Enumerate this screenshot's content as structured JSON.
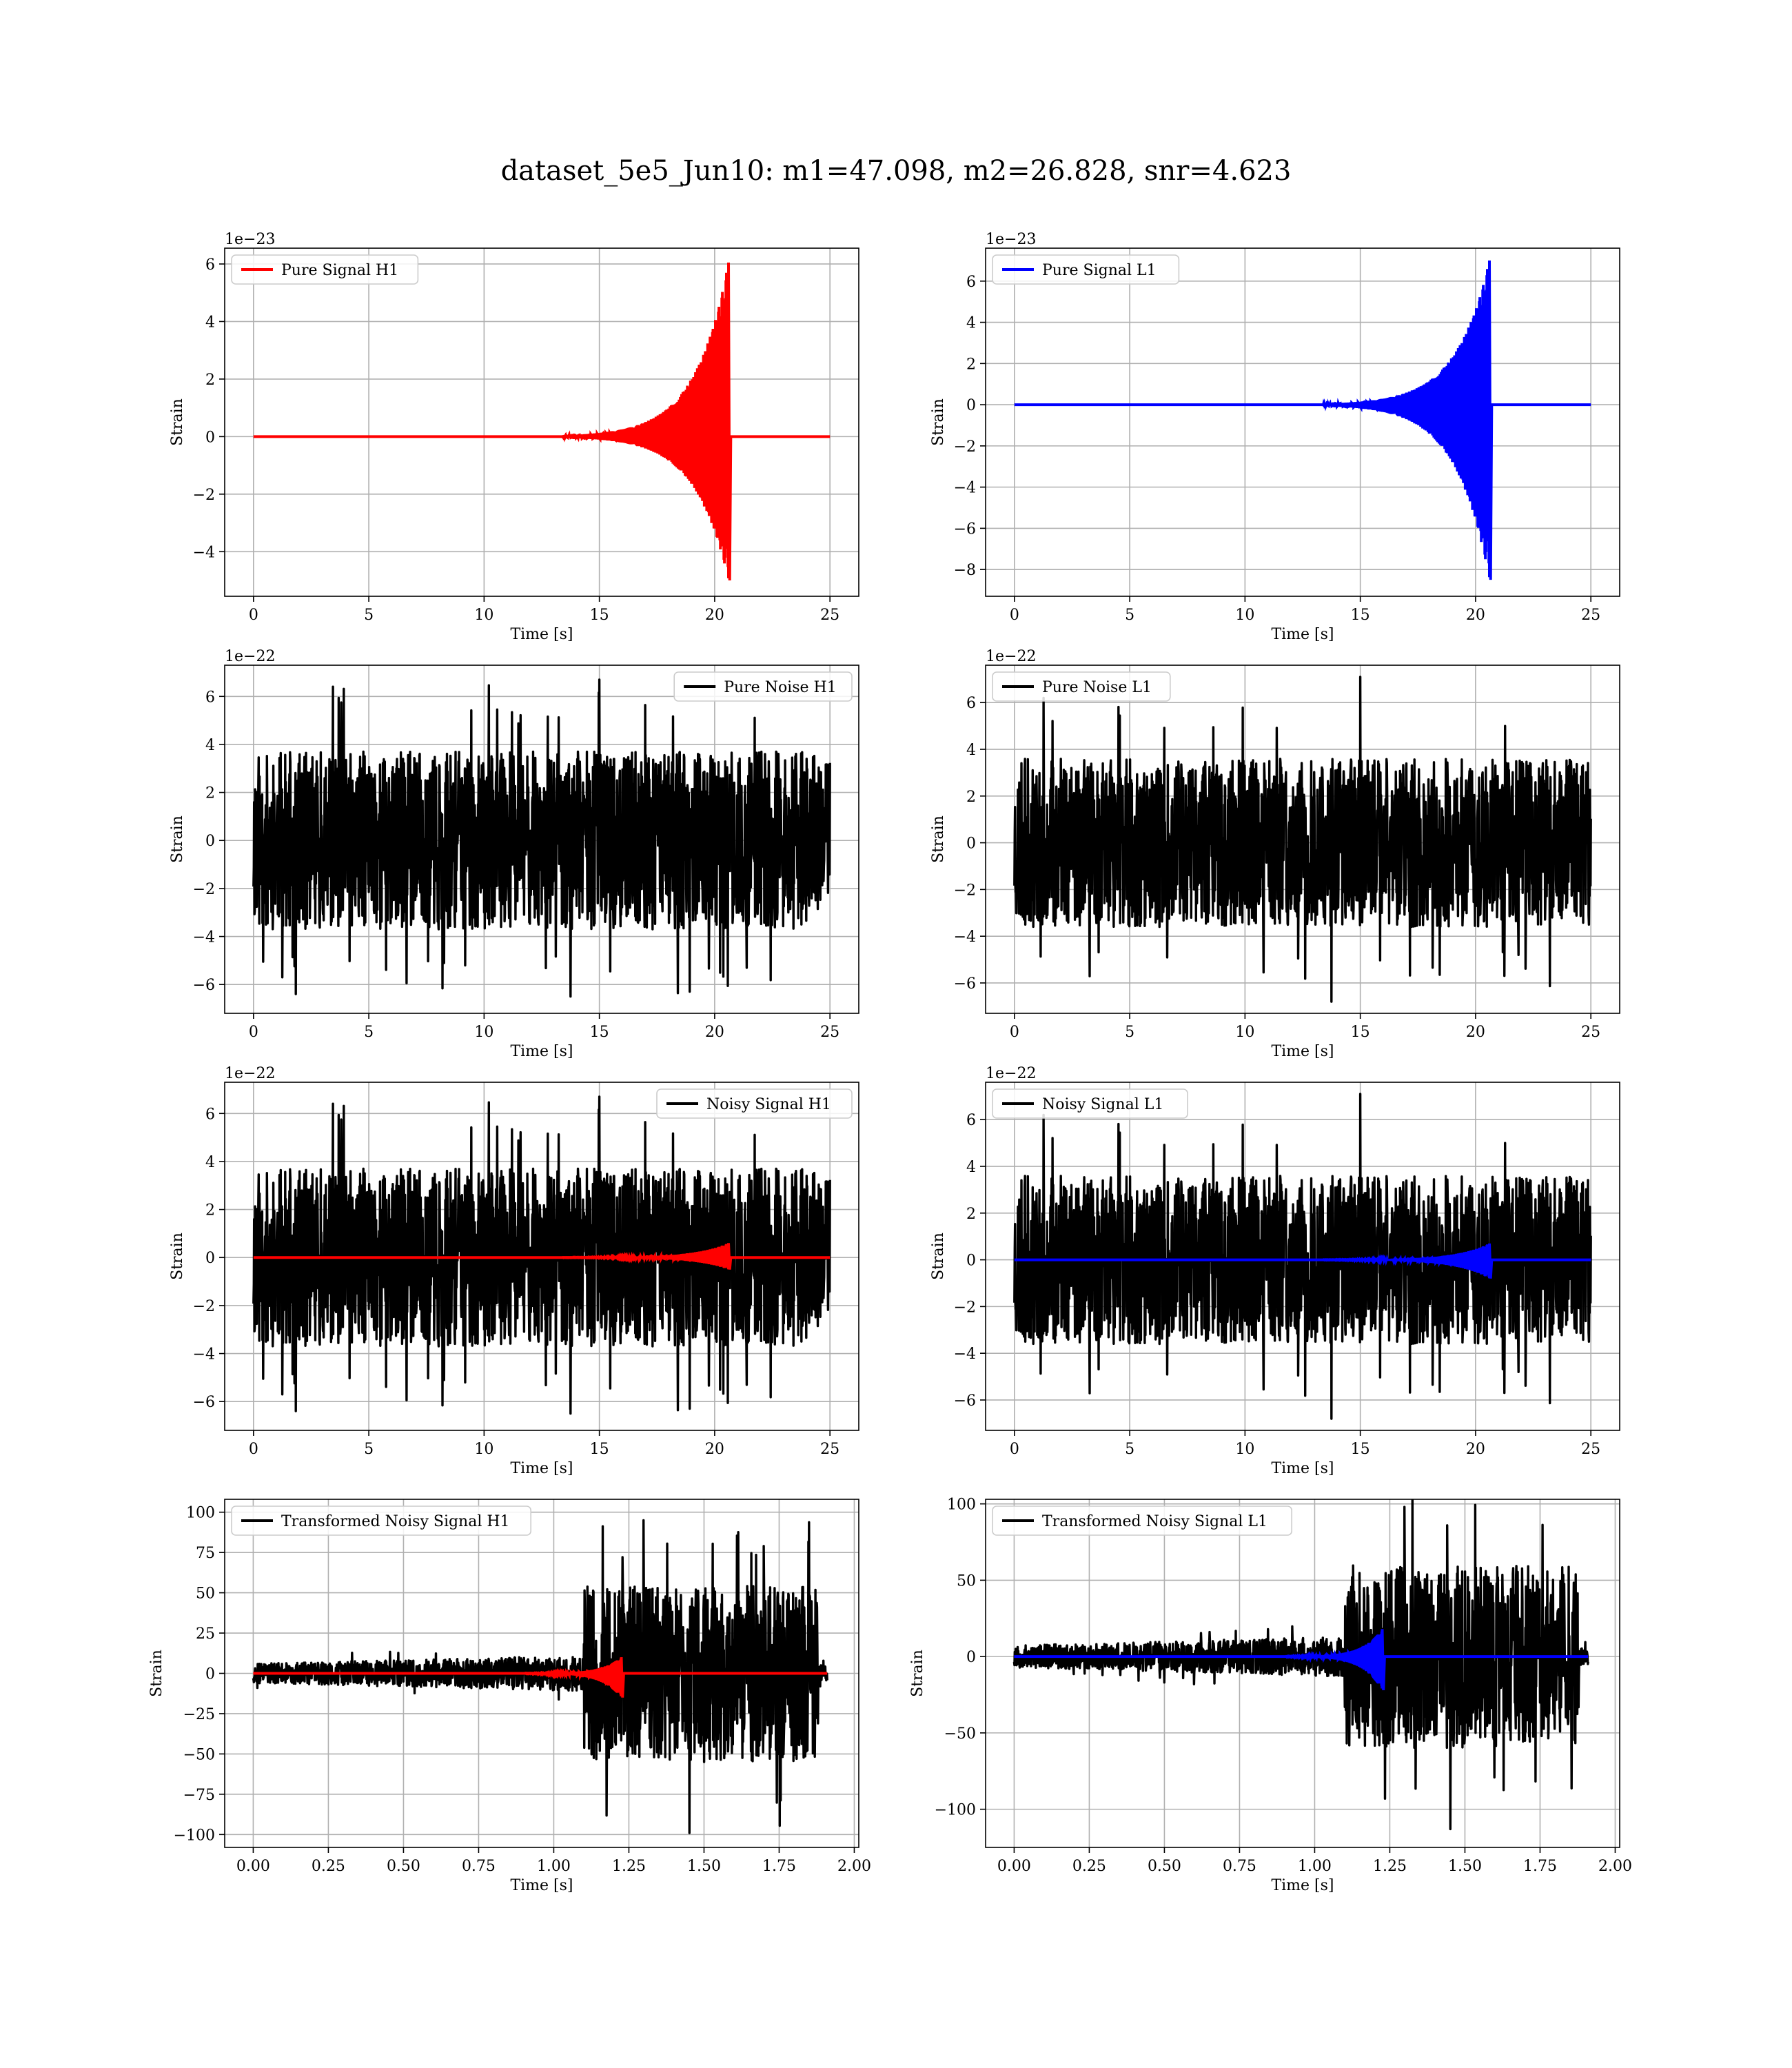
{
  "title": "dataset_5e5_Jun10: m1=47.098, m2=26.828, snr=4.623",
  "colors": {
    "signal_h1": "#ff0000",
    "signal_l1": "#0000ff",
    "noise": "#000000",
    "grid": "#b0b0b0"
  },
  "chart_data": [
    {
      "id": "pure-signal-h1",
      "type": "line",
      "xlabel": "Time [s]",
      "ylabel": "Strain",
      "offset_text": "1e−23",
      "xlim": [
        -1.25,
        26.25
      ],
      "ylim": [
        -5.55,
        6.55
      ],
      "xticks": [
        0,
        5,
        10,
        15,
        20,
        25
      ],
      "xtick_labels": [
        "0",
        "5",
        "10",
        "15",
        "20",
        "25"
      ],
      "yticks": [
        -4,
        -2,
        0,
        2,
        4,
        6
      ],
      "ytick_labels": [
        "−4",
        "−2",
        "0",
        "2",
        "4",
        "6"
      ],
      "grid": true,
      "legend_loc": "upper-left",
      "series": [
        {
          "name": "Pure Signal H1",
          "color": "#ff0000",
          "kind": "chirp",
          "t0": 0,
          "t1": 25,
          "tc": 20.6,
          "pos": 6.05,
          "neg": -5.0
        }
      ]
    },
    {
      "id": "pure-signal-l1",
      "type": "line",
      "xlabel": "Time [s]",
      "ylabel": "Strain",
      "offset_text": "1e−23",
      "xlim": [
        -1.25,
        26.25
      ],
      "ylim": [
        -9.3,
        7.6
      ],
      "xticks": [
        0,
        5,
        10,
        15,
        20,
        25
      ],
      "xtick_labels": [
        "0",
        "5",
        "10",
        "15",
        "20",
        "25"
      ],
      "yticks": [
        -8,
        -6,
        -4,
        -2,
        0,
        2,
        4,
        6
      ],
      "ytick_labels": [
        "−8",
        "−6",
        "−4",
        "−2",
        "0",
        "2",
        "4",
        "6"
      ],
      "grid": true,
      "legend_loc": "upper-left",
      "series": [
        {
          "name": "Pure Signal L1",
          "color": "#0000ff",
          "kind": "chirp",
          "t0": 0,
          "t1": 25,
          "tc": 20.6,
          "pos": 7.0,
          "neg": -8.5
        }
      ]
    },
    {
      "id": "pure-noise-h1",
      "type": "line",
      "xlabel": "Time [s]",
      "ylabel": "Strain",
      "offset_text": "1e−22",
      "xlim": [
        -1.25,
        26.25
      ],
      "ylim": [
        -7.2,
        7.3
      ],
      "xticks": [
        0,
        5,
        10,
        15,
        20,
        25
      ],
      "xtick_labels": [
        "0",
        "5",
        "10",
        "15",
        "20",
        "25"
      ],
      "yticks": [
        -6,
        -4,
        -2,
        0,
        2,
        4,
        6
      ],
      "ytick_labels": [
        "−6",
        "−4",
        "−2",
        "0",
        "2",
        "4",
        "6"
      ],
      "grid": true,
      "legend_loc": "upper-right",
      "series": [
        {
          "name": "Pure Noise H1",
          "color": "#000000",
          "kind": "noise",
          "t0": 0,
          "t1": 25,
          "core": 3.7,
          "peak_max": 6.7,
          "peak_min": -6.5,
          "seed": 11
        }
      ]
    },
    {
      "id": "pure-noise-l1",
      "type": "line",
      "xlabel": "Time [s]",
      "ylabel": "Strain",
      "offset_text": "1e−22",
      "xlim": [
        -1.25,
        26.25
      ],
      "ylim": [
        -7.3,
        7.6
      ],
      "xticks": [
        0,
        5,
        10,
        15,
        20,
        25
      ],
      "xtick_labels": [
        "0",
        "5",
        "10",
        "15",
        "20",
        "25"
      ],
      "yticks": [
        -6,
        -4,
        -2,
        0,
        2,
        4,
        6
      ],
      "ytick_labels": [
        "−6",
        "−4",
        "−2",
        "0",
        "2",
        "4",
        "6"
      ],
      "grid": true,
      "legend_loc": "upper-left",
      "series": [
        {
          "name": "Pure Noise L1",
          "color": "#000000",
          "kind": "noise",
          "t0": 0,
          "t1": 25,
          "core": 3.6,
          "peak_max": 7.1,
          "peak_min": -6.8,
          "seed": 23
        }
      ]
    },
    {
      "id": "noisy-signal-h1",
      "type": "line",
      "xlabel": "Time [s]",
      "ylabel": "Strain",
      "offset_text": "1e−22",
      "xlim": [
        -1.25,
        26.25
      ],
      "ylim": [
        -7.2,
        7.3
      ],
      "xticks": [
        0,
        5,
        10,
        15,
        20,
        25
      ],
      "xtick_labels": [
        "0",
        "5",
        "10",
        "15",
        "20",
        "25"
      ],
      "yticks": [
        -6,
        -4,
        -2,
        0,
        2,
        4,
        6
      ],
      "ytick_labels": [
        "−6",
        "−4",
        "−2",
        "0",
        "2",
        "4",
        "6"
      ],
      "grid": true,
      "legend_loc": "upper-right",
      "series": [
        {
          "name": "Noisy Signal H1",
          "color": "#000000",
          "kind": "noise",
          "t0": 0,
          "t1": 25,
          "core": 3.7,
          "peak_max": 6.7,
          "peak_min": -6.5,
          "seed": 11
        },
        {
          "color": "#ff0000",
          "kind": "chirp",
          "t0": 0,
          "t1": 25,
          "tc": 20.6,
          "pos": 0.6,
          "neg": -0.5
        }
      ]
    },
    {
      "id": "noisy-signal-l1",
      "type": "line",
      "xlabel": "Time [s]",
      "ylabel": "Strain",
      "offset_text": "1e−22",
      "xlim": [
        -1.25,
        26.25
      ],
      "ylim": [
        -7.3,
        7.6
      ],
      "xticks": [
        0,
        5,
        10,
        15,
        20,
        25
      ],
      "xtick_labels": [
        "0",
        "5",
        "10",
        "15",
        "20",
        "25"
      ],
      "yticks": [
        -6,
        -4,
        -2,
        0,
        2,
        4,
        6
      ],
      "ytick_labels": [
        "−6",
        "−4",
        "−2",
        "0",
        "2",
        "4",
        "6"
      ],
      "grid": true,
      "legend_loc": "upper-left",
      "series": [
        {
          "name": "Noisy Signal L1",
          "color": "#000000",
          "kind": "noise",
          "t0": 0,
          "t1": 25,
          "core": 3.6,
          "peak_max": 7.1,
          "peak_min": -6.8,
          "seed": 23
        },
        {
          "color": "#0000ff",
          "kind": "chirp",
          "t0": 0,
          "t1": 25,
          "tc": 20.6,
          "pos": 0.7,
          "neg": -0.8
        }
      ]
    },
    {
      "id": "transformed-h1",
      "type": "line",
      "xlabel": "Time [s]",
      "ylabel": "Strain",
      "offset_text": "",
      "xlim": [
        -0.095,
        2.015
      ],
      "ylim": [
        -108,
        108
      ],
      "xticks": [
        0,
        0.25,
        0.5,
        0.75,
        1.0,
        1.25,
        1.5,
        1.75,
        2.0
      ],
      "xtick_labels": [
        "0.00",
        "0.25",
        "0.50",
        "0.75",
        "1.00",
        "1.25",
        "1.50",
        "1.75",
        "2.00"
      ],
      "yticks": [
        -100,
        -75,
        -50,
        -25,
        0,
        25,
        50,
        75,
        100
      ],
      "ytick_labels": [
        "−100",
        "−75",
        "−50",
        "−25",
        "0",
        "25",
        "50",
        "75",
        "100"
      ],
      "grid": true,
      "legend_loc": "upper-left",
      "series": [
        {
          "name": "Transformed Noisy Signal H1",
          "color": "#000000",
          "kind": "transformed",
          "t0": 0,
          "t1": 1.91,
          "tstep": 1.1,
          "low": 10,
          "high": 55,
          "peak_max": 95,
          "peak_min": -99,
          "seed": 37
        },
        {
          "color": "#ff0000",
          "kind": "chirp",
          "t0": 0,
          "t1": 1.91,
          "tc": 1.225,
          "pos": 10,
          "neg": -15,
          "tau": 0.04,
          "freq": 110
        }
      ]
    },
    {
      "id": "transformed-l1",
      "type": "line",
      "xlabel": "Time [s]",
      "ylabel": "Strain",
      "offset_text": "",
      "xlim": [
        -0.095,
        2.015
      ],
      "ylim": [
        -125,
        103
      ],
      "xticks": [
        0,
        0.25,
        0.5,
        0.75,
        1.0,
        1.25,
        1.5,
        1.75,
        2.0
      ],
      "xtick_labels": [
        "0.00",
        "0.25",
        "0.50",
        "0.75",
        "1.00",
        "1.25",
        "1.50",
        "1.75",
        "2.00"
      ],
      "yticks": [
        -100,
        -50,
        0,
        50,
        100
      ],
      "ytick_labels": [
        "−100",
        "−50",
        "0",
        "50",
        "100"
      ],
      "grid": true,
      "legend_loc": "upper-left",
      "series": [
        {
          "name": "Transformed Noisy Signal L1",
          "color": "#000000",
          "kind": "transformed",
          "t0": 0,
          "t1": 1.91,
          "tstep": 1.1,
          "low": 12,
          "high": 60,
          "peak_max": 98,
          "peak_min": -113,
          "seed": 53
        },
        {
          "color": "#0000ff",
          "kind": "chirp",
          "t0": 0,
          "t1": 1.91,
          "tc": 1.225,
          "pos": 18,
          "neg": -22,
          "tau": 0.04,
          "freq": 110
        }
      ]
    }
  ]
}
